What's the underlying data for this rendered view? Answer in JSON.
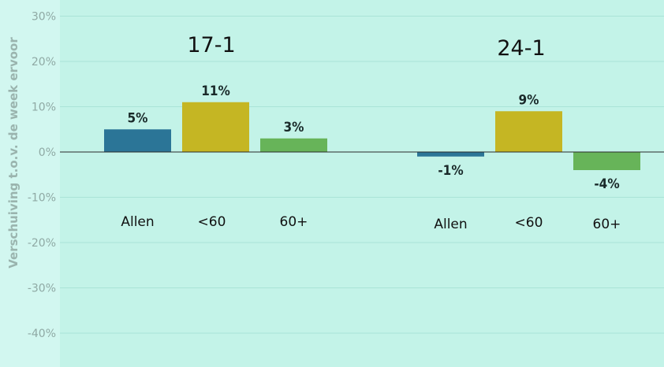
{
  "chart_data": {
    "type": "bar",
    "ylabel": "Verschuiving t.o.v. de week ervoor",
    "ylim": [
      -45,
      32
    ],
    "yticks": [
      30,
      20,
      10,
      0,
      -10,
      -20,
      -30,
      -40
    ],
    "ytick_labels": [
      "30%",
      "20%",
      "10%",
      "0%",
      "-10%",
      "-20%",
      "-30%",
      "-40%"
    ],
    "grid": true,
    "groups": [
      {
        "title": "17-1",
        "categories": [
          "Allen",
          "<60",
          "60+"
        ],
        "values": [
          5,
          11,
          3
        ],
        "value_labels": [
          "5%",
          "11%",
          "3%"
        ]
      },
      {
        "title": "24-1",
        "categories": [
          "Allen",
          "<60",
          "60+"
        ],
        "values": [
          -1,
          9,
          -4
        ],
        "value_labels": [
          "-1%",
          "9%",
          "-4%"
        ]
      }
    ],
    "colors": {
      "Allen": "#2b7597",
      "<60": "#c5b623",
      "60+": "#67b459",
      "plot_background": "#c3f3e8",
      "page_background": "#d2f7f0",
      "grid": "#a9e3d7",
      "zero_line": "#2a2a2a"
    }
  }
}
